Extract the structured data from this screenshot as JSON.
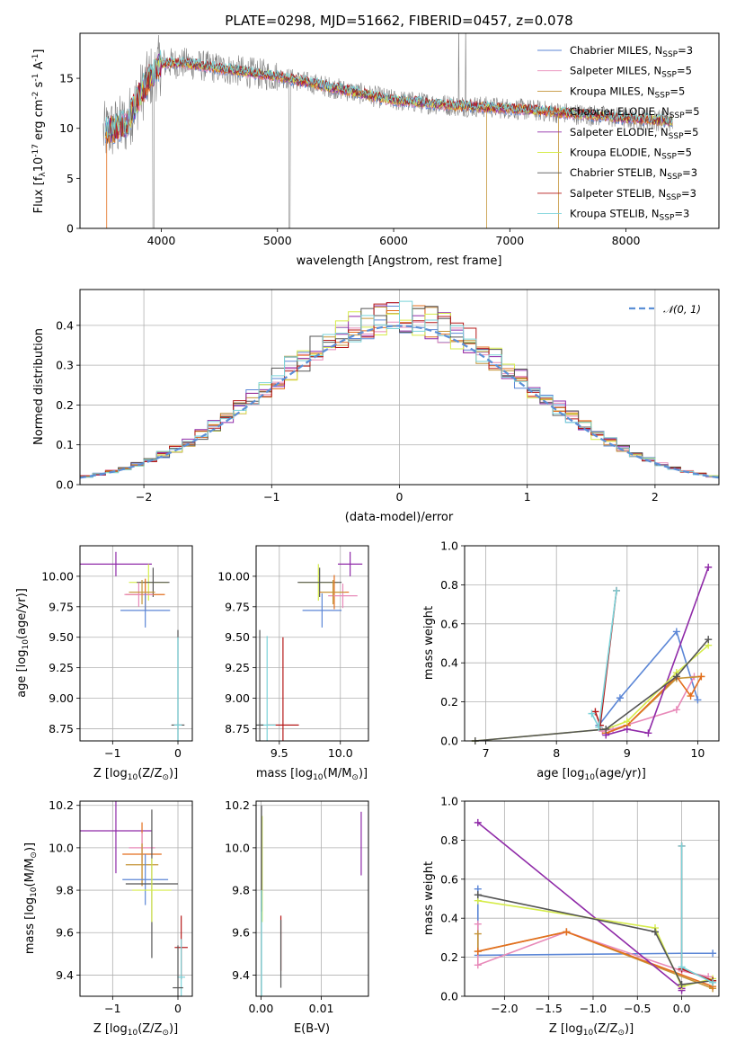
{
  "colors": {
    "Chabrier MILES": "#5b86d6",
    "Salpeter MILES": "#e88ab9",
    "Kroupa MILES": "#c59538",
    "Chabrier ELODIE": "#e36e1d",
    "Salpeter ELODIE": "#8f2aa8",
    "Kroupa ELODIE": "#d6ec4b",
    "Chabrier STELIB": "#555555",
    "Salpeter STELIB": "#b51919",
    "Kroupa STELIB": "#7ad3d9",
    "data": "#808080",
    "gaussian": "#5b8fd6"
  },
  "chart_data": [
    {
      "id": "spectrum",
      "type": "line",
      "title": "PLATE=0298, MJD=51662, FIBERID=0457, z=0.078",
      "xlabel": "wavelength [Angstrom, rest frame]",
      "ylabel": "Flux [f$_{\\lambda}$10$^{-17}$ erg cm$^{-2}$ s$^{-1}$ A$^{-1}$]",
      "xlim": [
        3300,
        8800
      ],
      "ylim": [
        0,
        19.5
      ],
      "xticks": [
        "4000",
        "5000",
        "6000",
        "7000",
        "8000"
      ],
      "yticks": [
        "0",
        "5",
        "10",
        "15"
      ],
      "legend_position": "top-right",
      "legend": [
        "Chabrier MILES, N$_{SSP}$=3",
        "Salpeter MILES, N$_{SSP}$=5",
        "Kroupa MILES, N$_{SSP}$=5",
        "Chabrier ELODIE, N$_{SSP}$=5",
        "Salpeter ELODIE, N$_{SSP}$=5",
        "Kroupa ELODIE, N$_{SSP}$=5",
        "Chabrier STELIB, N$_{SSP}$=3",
        "Salpeter STELIB, N$_{SSP}$=3",
        "Kroupa STELIB, N$_{SSP}$=3"
      ],
      "continuum_model": [
        [
          3500,
          9.5
        ],
        [
          3600,
          10
        ],
        [
          3700,
          10.5
        ],
        [
          3800,
          13
        ],
        [
          3900,
          15
        ],
        [
          4000,
          16.5
        ],
        [
          4200,
          16.5
        ],
        [
          4500,
          16
        ],
        [
          4800,
          15.5
        ],
        [
          5000,
          15.2
        ],
        [
          5500,
          14
        ],
        [
          6000,
          12.8
        ],
        [
          6500,
          12.3
        ],
        [
          7000,
          12
        ],
        [
          7500,
          11.5
        ],
        [
          8000,
          11
        ],
        [
          8300,
          10.8
        ],
        [
          8400,
          10.7
        ]
      ]
    },
    {
      "id": "residuals",
      "type": "line",
      "xlabel": "(data-model)/error",
      "ylabel": "Normed distribution",
      "xlim": [
        -2.5,
        2.5
      ],
      "ylim": [
        0,
        0.49
      ],
      "xticks": [
        "−2",
        "−1",
        "0",
        "1",
        "2"
      ],
      "yticks": [
        "0.0",
        "0.1",
        "0.2",
        "0.3",
        "0.4"
      ],
      "legend_position": "top-right",
      "legend": [
        "$\\mathcal{N}(0, 1)$"
      ],
      "bin_width": 0.1
    },
    {
      "id": "age_vs_Z",
      "type": "scatter",
      "xlabel": "Z [log$_{10}$(Z/Z$_\\odot$)]",
      "ylabel": "age  [log$_{10}$(age/yr)]",
      "xlim": [
        -1.5,
        0.22
      ],
      "ylim": [
        8.65,
        10.25
      ],
      "xticks": [
        "−1",
        "0"
      ],
      "yticks": [
        "8.75",
        "9.00",
        "9.25",
        "9.50",
        "9.75",
        "10.00"
      ],
      "points": [
        {
          "model": "Salpeter ELODIE",
          "x": -0.95,
          "y": 10.1,
          "xerr": 0.55,
          "yerr": 0.1
        },
        {
          "model": "Kroupa ELODIE",
          "x": -0.45,
          "y": 9.95,
          "xerr": 0.3,
          "yerr": 0.15
        },
        {
          "model": "Chabrier STELIB",
          "x": -0.38,
          "y": 9.95,
          "xerr": 0.25,
          "yerr": 0.12
        },
        {
          "model": "Chabrier ELODIE",
          "x": -0.5,
          "y": 9.85,
          "xerr": 0.3,
          "yerr": 0.13
        },
        {
          "model": "Salpeter MILES",
          "x": -0.6,
          "y": 9.85,
          "xerr": 0.22,
          "yerr": 0.1
        },
        {
          "model": "Kroupa MILES",
          "x": -0.55,
          "y": 9.87,
          "xerr": 0.2,
          "yerr": 0.1
        },
        {
          "model": "Chabrier MILES",
          "x": -0.5,
          "y": 9.72,
          "xerr": 0.38,
          "yerr": 0.14
        },
        {
          "model": "Chabrier STELIB",
          "x": 0.0,
          "y": 8.78,
          "xerr": 0.1,
          "yerr": 0.78
        },
        {
          "model": "Kroupa STELIB",
          "x": 0.0,
          "y": 8.78,
          "xerr": 0.06,
          "yerr": 0.72
        }
      ]
    },
    {
      "id": "age_vs_mass",
      "type": "scatter",
      "xlabel": "mass [log$_{10}$(M/M$_\\odot$)]",
      "ylabel": "",
      "xlim": [
        9.31,
        10.23
      ],
      "ylim": [
        8.65,
        10.25
      ],
      "xticks": [
        "9.5",
        "10.0"
      ],
      "yticks": [
        "8.75",
        "9.00",
        "9.25",
        "9.50",
        "9.75",
        "10.00"
      ],
      "points": [
        {
          "model": "Salpeter ELODIE",
          "x": 10.08,
          "y": 10.1,
          "xerr": 0.1,
          "yerr": 0.1
        },
        {
          "model": "Kroupa ELODIE",
          "x": 9.82,
          "y": 9.95,
          "xerr": 0.16,
          "yerr": 0.15
        },
        {
          "model": "Chabrier STELIB",
          "x": 9.83,
          "y": 9.95,
          "xerr": 0.18,
          "yerr": 0.12
        },
        {
          "model": "Chabrier ELODIE",
          "x": 9.95,
          "y": 9.87,
          "xerr": 0.12,
          "yerr": 0.14
        },
        {
          "model": "Salpeter MILES",
          "x": 10.02,
          "y": 9.84,
          "xerr": 0.12,
          "yerr": 0.1
        },
        {
          "model": "Kroupa MILES",
          "x": 9.94,
          "y": 9.87,
          "xerr": 0.1,
          "yerr": 0.1
        },
        {
          "model": "Chabrier MILES",
          "x": 9.85,
          "y": 9.72,
          "xerr": 0.16,
          "yerr": 0.14
        },
        {
          "model": "Salpeter STELIB",
          "x": 9.53,
          "y": 8.78,
          "xerr": 0.13,
          "yerr": 0.72
        },
        {
          "model": "Kroupa STELIB",
          "x": 9.4,
          "y": 8.78,
          "xerr": 0.07,
          "yerr": 0.73
        },
        {
          "model": "Chabrier STELIB",
          "x": 9.34,
          "y": 8.78,
          "xerr": 0.03,
          "yerr": 0.78
        }
      ]
    },
    {
      "id": "weight_vs_age",
      "type": "line",
      "xlabel": "age  [log$_{10}$(age/yr)]",
      "ylabel": "mass weight",
      "xlim": [
        6.7,
        10.3
      ],
      "ylim": [
        0,
        1
      ],
      "xticks": [
        "7",
        "8",
        "9",
        "10"
      ],
      "yticks": [
        "0.0",
        "0.2",
        "0.4",
        "0.6",
        "0.8",
        "1.0"
      ],
      "series": [
        {
          "model": "Chabrier MILES",
          "x": [
            8.6,
            8.9,
            9.7,
            10.0
          ],
          "y": [
            0.08,
            0.22,
            0.56,
            0.21
          ]
        },
        {
          "model": "Salpeter MILES",
          "x": [
            8.65,
            8.8,
            9.7,
            9.95
          ],
          "y": [
            0.05,
            0.06,
            0.16,
            0.33
          ]
        },
        {
          "model": "Kroupa MILES",
          "x": [
            8.7,
            9.0,
            9.7,
            10.05
          ],
          "y": [
            0.04,
            0.08,
            0.32,
            0.33
          ]
        },
        {
          "model": "Chabrier ELODIE",
          "x": [
            8.7,
            9.0,
            9.7,
            9.9,
            10.05
          ],
          "y": [
            0.04,
            0.08,
            0.33,
            0.23,
            0.33
          ]
        },
        {
          "model": "Salpeter ELODIE",
          "x": [
            8.7,
            9.0,
            9.3,
            10.15
          ],
          "y": [
            0.03,
            0.06,
            0.04,
            0.89
          ]
        },
        {
          "model": "Kroupa ELODIE",
          "x": [
            6.85,
            8.7,
            9.0,
            9.7,
            10.15
          ],
          "y": [
            0.0,
            0.06,
            0.1,
            0.35,
            0.49
          ]
        },
        {
          "model": "Chabrier STELIB",
          "x": [
            6.85,
            8.7,
            9.7,
            10.15
          ],
          "y": [
            0.0,
            0.06,
            0.33,
            0.52
          ]
        },
        {
          "model": "Salpeter STELIB",
          "x": [
            8.55,
            8.62,
            8.85
          ],
          "y": [
            0.15,
            0.08,
            0.77
          ]
        },
        {
          "model": "Kroupa STELIB",
          "x": [
            8.5,
            8.6,
            8.85
          ],
          "y": [
            0.14,
            0.07,
            0.77
          ]
        }
      ]
    },
    {
      "id": "mass_vs_Z",
      "type": "scatter",
      "xlabel": "Z [log$_{10}$(Z/Z$_\\odot$)]",
      "ylabel": "mass [log$_{10}$(M/M$_\\odot$)]",
      "xlim": [
        -1.5,
        0.22
      ],
      "ylim": [
        9.3,
        10.22
      ],
      "xticks": [
        "−1",
        "0"
      ],
      "yticks": [
        "9.4",
        "9.6",
        "9.8",
        "10.0",
        "10.2"
      ],
      "points": [
        {
          "model": "Salpeter ELODIE",
          "x": -0.95,
          "y": 10.08,
          "xerr": 0.55,
          "yerr": 0.2
        },
        {
          "model": "Chabrier ELODIE",
          "x": -0.55,
          "y": 9.97,
          "xerr": 0.3,
          "yerr": 0.15
        },
        {
          "model": "Salpeter MILES",
          "x": -0.55,
          "y": 10.0,
          "xerr": 0.2,
          "yerr": 0.07
        },
        {
          "model": "Kroupa MILES",
          "x": -0.55,
          "y": 9.92,
          "xerr": 0.25,
          "yerr": 0.1
        },
        {
          "model": "Chabrier MILES",
          "x": -0.5,
          "y": 9.85,
          "xerr": 0.35,
          "yerr": 0.12
        },
        {
          "model": "Chabrier STELIB",
          "x": -0.4,
          "y": 9.83,
          "xerr": 0.4,
          "yerr": 0.35
        },
        {
          "model": "Kroupa ELODIE",
          "x": -0.4,
          "y": 9.8,
          "xerr": 0.3,
          "yerr": 0.15
        },
        {
          "model": "Salpeter STELIB",
          "x": 0.05,
          "y": 9.53,
          "xerr": 0.1,
          "yerr": 0.15
        },
        {
          "model": "Kroupa STELIB",
          "x": 0.05,
          "y": 9.39,
          "xerr": 0.06,
          "yerr": 0.18
        },
        {
          "model": "Chabrier STELIB",
          "x": 0.0,
          "y": 9.34,
          "xerr": 0.08,
          "yerr": 0.2
        }
      ]
    },
    {
      "id": "mass_vs_ebv",
      "type": "scatter",
      "xlabel": "E(B-V)",
      "ylabel": "",
      "xlim": [
        -0.0008,
        0.0178
      ],
      "ylim": [
        9.3,
        10.22
      ],
      "xticks": [
        "0.00",
        "0.01"
      ],
      "yticks": [
        "9.4",
        "9.6",
        "9.8",
        "10.0",
        "10.2"
      ],
      "points": [
        {
          "model": "Kroupa ELODIE",
          "x": 0.0002,
          "y": 9.9,
          "yerr": 0.25
        },
        {
          "model": "Chabrier STELIB",
          "x": 0.0001,
          "y": 9.95,
          "yerr": 0.25
        },
        {
          "model": "Kroupa STELIB",
          "x": 0.0001,
          "y": 9.55,
          "yerr": 0.25
        },
        {
          "model": "Salpeter STELIB",
          "x": 0.0033,
          "y": 9.55,
          "yerr": 0.13
        },
        {
          "model": "Chabrier STELIB",
          "x": 0.0033,
          "y": 9.5,
          "yerr": 0.16
        },
        {
          "model": "Salpeter ELODIE",
          "x": 0.0166,
          "y": 10.02,
          "yerr": 0.15
        }
      ]
    },
    {
      "id": "weight_vs_Z",
      "type": "line",
      "xlabel": "Z [log$_{10}$(Z/Z$_\\odot$)]",
      "ylabel": "mass weight",
      "xlim": [
        -2.45,
        0.42
      ],
      "ylim": [
        0,
        1
      ],
      "xticks": [
        "−2.0",
        "−1.5",
        "−1.0",
        "−0.5",
        "0.0"
      ],
      "yticks": [
        "0.0",
        "0.2",
        "0.4",
        "0.6",
        "0.8",
        "1.0"
      ],
      "series": [
        {
          "model": "Chabrier MILES",
          "x": [
            -2.3,
            -2.3,
            0.0,
            0.35
          ],
          "y": [
            0.55,
            0.21,
            0.22,
            0.22
          ]
        },
        {
          "model": "Salpeter MILES",
          "x": [
            -2.3,
            -2.3,
            -1.3,
            0.0,
            0.3
          ],
          "y": [
            0.37,
            0.16,
            0.33,
            0.13,
            0.1
          ]
        },
        {
          "model": "Kroupa MILES",
          "x": [
            -2.3,
            -2.3,
            -1.3,
            0.35
          ],
          "y": [
            0.32,
            0.23,
            0.33,
            0.04
          ]
        },
        {
          "model": "Chabrier ELODIE",
          "x": [
            -2.3,
            -1.3,
            0.35
          ],
          "y": [
            0.23,
            0.33,
            0.05
          ]
        },
        {
          "model": "Salpeter ELODIE",
          "x": [
            -2.3,
            0.0,
            0.0
          ],
          "y": [
            0.89,
            0.04,
            0.03
          ]
        },
        {
          "model": "Kroupa ELODIE",
          "x": [
            -2.3,
            -0.3,
            0.0,
            0.35
          ],
          "y": [
            0.49,
            0.35,
            0.05,
            0.09
          ]
        },
        {
          "model": "Chabrier STELIB",
          "x": [
            -2.3,
            -0.3,
            0.0,
            0.35
          ],
          "y": [
            0.52,
            0.33,
            0.06,
            0.08
          ]
        },
        {
          "model": "Salpeter STELIB",
          "x": [
            0.0,
            0.0,
            0.35
          ],
          "y": [
            0.77,
            0.14,
            0.08
          ]
        },
        {
          "model": "Kroupa STELIB",
          "x": [
            0.0,
            0.0,
            0.35
          ],
          "y": [
            0.77,
            0.15,
            0.07
          ]
        }
      ]
    }
  ]
}
